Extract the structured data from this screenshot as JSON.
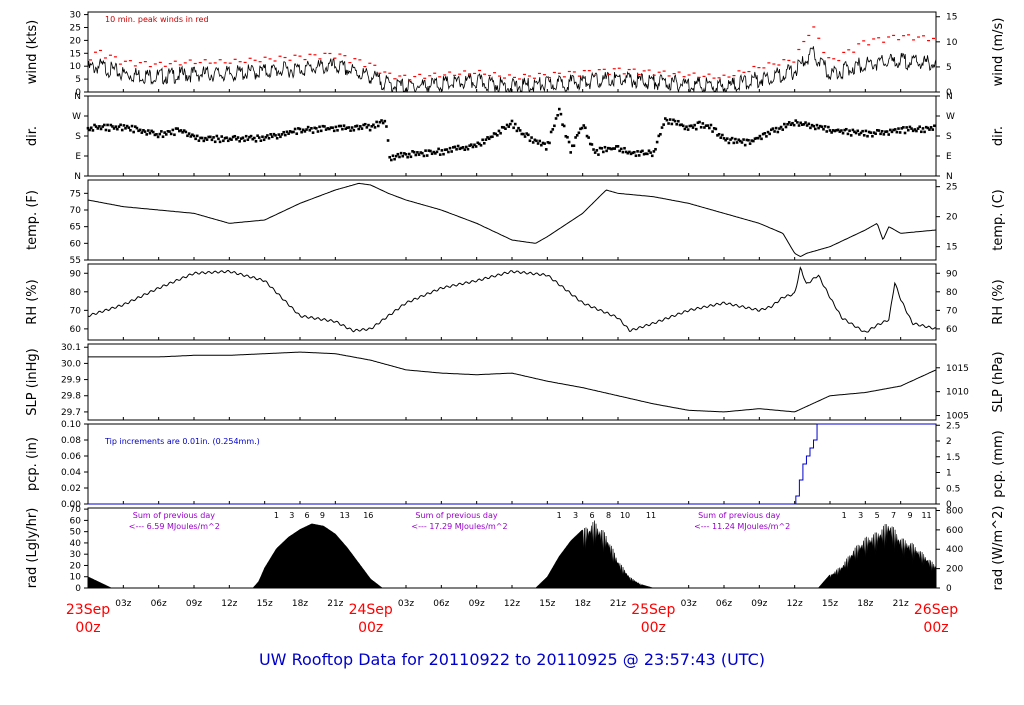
{
  "title": "UW Rooftop Data for 20110922  to  20110925 @ 23:57:43  (UTC)",
  "colors": {
    "trace": "#000000",
    "peak": "#ff0000",
    "note_wind": "#cc0000",
    "note_pcp": "#0000cc",
    "pcp_line": "#0000cc",
    "rad_note": "#9900cc",
    "date_label": "#ff0000",
    "title": "#0000cc"
  },
  "time_axis": {
    "day_labels": [
      {
        "t": 0,
        "day": "23Sep",
        "hour": "00z"
      },
      {
        "t": 24,
        "day": "24Sep",
        "hour": "00z"
      },
      {
        "t": 48,
        "day": "25Sep",
        "hour": "00z"
      },
      {
        "t": 72,
        "day": "26Sep",
        "hour": "00z"
      }
    ],
    "hour_labels": [
      {
        "t": 3,
        "label": "03z"
      },
      {
        "t": 6,
        "label": "06z"
      },
      {
        "t": 9,
        "label": "09z"
      },
      {
        "t": 12,
        "label": "12z"
      },
      {
        "t": 15,
        "label": "15z"
      },
      {
        "t": 18,
        "label": "18z"
      },
      {
        "t": 21,
        "label": "21z"
      },
      {
        "t": 27,
        "label": "03z"
      },
      {
        "t": 30,
        "label": "06z"
      },
      {
        "t": 33,
        "label": "09z"
      },
      {
        "t": 36,
        "label": "12z"
      },
      {
        "t": 39,
        "label": "15z"
      },
      {
        "t": 42,
        "label": "18z"
      },
      {
        "t": 45,
        "label": "21z"
      },
      {
        "t": 51,
        "label": "03z"
      },
      {
        "t": 54,
        "label": "06z"
      },
      {
        "t": 57,
        "label": "09z"
      },
      {
        "t": 60,
        "label": "12z"
      },
      {
        "t": 63,
        "label": "15z"
      },
      {
        "t": 66,
        "label": "18z"
      },
      {
        "t": 69,
        "label": "21z"
      }
    ]
  },
  "chart_data": [
    {
      "type": "line",
      "id": "wind",
      "ylabel_left": "wind (kts)",
      "ylabel_right": "wind (m/s)",
      "ylim": [
        0,
        31
      ],
      "left_ticks": [
        0,
        5,
        10,
        15,
        20,
        25,
        30
      ],
      "right_ticks": [
        0,
        5,
        10,
        15
      ],
      "right_factor": 1.944,
      "annotation": "10 min. peak winds in red",
      "series": [
        {
          "role": "mean",
          "x": [
            0,
            1,
            3,
            6,
            9,
            12,
            15,
            18,
            21,
            24,
            25.5,
            27,
            30,
            33,
            36,
            39,
            42,
            45,
            48,
            51,
            54,
            57,
            60,
            61.5,
            63,
            66,
            69,
            72
          ],
          "y": [
            9,
            10,
            7,
            6,
            7,
            7,
            8,
            9,
            10,
            6,
            3,
            2,
            3,
            4,
            2,
            3,
            4,
            5,
            4,
            3,
            2,
            5,
            8,
            15,
            7,
            11,
            12,
            11
          ]
        },
        {
          "role": "peak",
          "x": [
            0,
            1,
            3,
            6,
            9,
            12,
            15,
            18,
            21,
            24,
            25.5,
            27,
            30,
            33,
            36,
            39,
            42,
            45,
            48,
            51,
            54,
            57,
            60,
            61.5,
            63,
            66,
            69,
            72
          ],
          "y": [
            12,
            14,
            10,
            9,
            10,
            10,
            11,
            12,
            13,
            9,
            5,
            4,
            5,
            6,
            4,
            5,
            6,
            7,
            6,
            5,
            4,
            8,
            11,
            24,
            10,
            18,
            20,
            19
          ]
        }
      ]
    },
    {
      "type": "scatter",
      "id": "dir",
      "ylabel_left": "dir.",
      "ylabel_right": "dir.",
      "ylim": [
        0,
        360
      ],
      "left_ticks": [
        {
          "v": 0,
          "label": "N"
        },
        {
          "v": 90,
          "label": "E"
        },
        {
          "v": 180,
          "label": "S"
        },
        {
          "v": 270,
          "label": "W"
        },
        {
          "v": 360,
          "label": "N"
        }
      ],
      "series": [
        {
          "x": [
            0,
            3,
            6,
            8,
            9,
            12,
            15,
            18,
            21,
            24,
            25.3,
            25.6,
            27,
            30,
            33,
            36,
            37,
            39,
            40,
            41,
            42,
            43,
            44,
            45,
            46,
            48,
            49,
            50,
            51,
            52,
            53,
            54,
            56,
            57,
            60,
            61,
            63,
            66,
            69,
            72
          ],
          "y": [
            215,
            220,
            185,
            205,
            170,
            165,
            170,
            205,
            215,
            220,
            245,
            80,
            95,
            110,
            135,
            235,
            185,
            130,
            300,
            110,
            235,
            105,
            120,
            125,
            100,
            100,
            250,
            235,
            215,
            230,
            215,
            165,
            150,
            175,
            240,
            230,
            205,
            190,
            205,
            215
          ]
        }
      ]
    },
    {
      "type": "line",
      "id": "temp",
      "ylabel_left": "temp. (F)",
      "ylabel_right": "temp. (C)",
      "ylim": [
        55,
        79
      ],
      "left_ticks": [
        55,
        60,
        65,
        70,
        75
      ],
      "right_ticks": [
        15,
        20,
        25
      ],
      "series": [
        {
          "x": [
            0,
            3,
            6,
            9,
            12,
            15,
            18,
            21,
            23,
            24,
            25.5,
            27,
            30,
            33,
            36,
            38,
            39,
            42,
            44,
            45,
            48,
            51,
            54,
            57,
            59,
            60,
            60.5,
            61,
            63,
            66,
            67,
            67.5,
            68,
            69,
            72
          ],
          "y": [
            73,
            71,
            70,
            69,
            66,
            67,
            72,
            76,
            78,
            77.5,
            75,
            73,
            70,
            66,
            61,
            60,
            62,
            69,
            76,
            75,
            74,
            72,
            69,
            66,
            63,
            57,
            56,
            57,
            59,
            64,
            66,
            61,
            65,
            63,
            64
          ]
        }
      ]
    },
    {
      "type": "line",
      "id": "rh",
      "ylabel_left": "RH (%)",
      "ylabel_right": "RH (%)",
      "ylim": [
        54,
        95
      ],
      "left_ticks": [
        60,
        70,
        80,
        90
      ],
      "right_ticks": [
        60,
        70,
        80,
        90
      ],
      "series": [
        {
          "x": [
            0,
            3,
            6,
            9,
            12,
            15,
            18,
            21,
            22.5,
            24,
            27,
            30,
            33,
            36,
            39,
            42,
            45,
            46,
            48,
            51,
            54,
            57,
            58,
            59,
            60,
            60.5,
            61,
            62,
            63,
            64,
            66,
            67,
            68,
            68.5,
            69,
            70,
            72
          ],
          "y": [
            67,
            73,
            82,
            90,
            91,
            86,
            67,
            64,
            59,
            60,
            74,
            82,
            86,
            91,
            89,
            74,
            66,
            59,
            63,
            70,
            74,
            70,
            72,
            77,
            79,
            93,
            84,
            89,
            77,
            66,
            58,
            62,
            65,
            85,
            76,
            63,
            60
          ]
        }
      ]
    },
    {
      "type": "line",
      "id": "slp",
      "ylabel_left": "SLP (inHg)",
      "ylabel_right": "SLP (hPa)",
      "ylim": [
        29.65,
        30.12
      ],
      "left_ticks": [
        29.7,
        29.8,
        29.9,
        30.0,
        30.1
      ],
      "left_decimals": 1,
      "right_ticks": [
        1005,
        1010,
        1015
      ],
      "right_scale": {
        "a": 33.8639,
        "b": 0
      },
      "series": [
        {
          "x": [
            0,
            3,
            6,
            9,
            12,
            15,
            18,
            21,
            24,
            27,
            30,
            33,
            36,
            39,
            42,
            45,
            48,
            51,
            54,
            57,
            60,
            63,
            66,
            69,
            72
          ],
          "y": [
            30.04,
            30.04,
            30.04,
            30.05,
            30.05,
            30.06,
            30.07,
            30.06,
            30.02,
            29.96,
            29.94,
            29.93,
            29.94,
            29.89,
            29.85,
            29.8,
            29.75,
            29.71,
            29.7,
            29.72,
            29.7,
            29.8,
            29.82,
            29.86,
            29.96
          ]
        }
      ]
    },
    {
      "type": "line",
      "id": "pcp",
      "ylabel_left": "pcp. (in)",
      "ylabel_right": "pcp. (mm)",
      "ylim": [
        0,
        0.1
      ],
      "left_ticks": [
        0.0,
        0.02,
        0.04,
        0.06,
        0.08,
        0.1
      ],
      "left_decimals": 2,
      "right_ticks": [
        0,
        0.5,
        1,
        1.5,
        2,
        2.5
      ],
      "right_scale": {
        "a": 25.4,
        "b": 0
      },
      "annotation": "Tip increments are 0.01in. (0.254mm.)",
      "series": [
        {
          "x": [
            0,
            59.8,
            60.1,
            60.4,
            60.7,
            61.0,
            61.3,
            61.6,
            61.9,
            72
          ],
          "y": [
            0,
            0,
            0.01,
            0.03,
            0.05,
            0.06,
            0.07,
            0.08,
            0.1,
            0.1
          ]
        }
      ]
    },
    {
      "type": "area",
      "id": "rad",
      "ylabel_left": "rad (Lgly/hr)",
      "ylabel_right": "rad (W/m^2)",
      "ylim": [
        0,
        71
      ],
      "left_ticks": [
        0,
        10,
        20,
        30,
        40,
        50,
        60,
        70
      ],
      "right_ticks": [
        0,
        200,
        400,
        600,
        800
      ],
      "right_scale": {
        "a": 11.63,
        "b": 0
      },
      "series": [
        {
          "x": [
            0,
            1,
            2,
            14,
            14.5,
            15,
            16,
            17,
            18,
            19,
            20,
            21,
            22,
            23,
            24,
            25,
            38,
            39,
            40,
            41,
            42,
            43,
            44,
            45,
            46,
            47,
            48,
            62,
            63,
            64,
            65,
            66,
            67,
            68,
            69,
            70,
            71,
            72
          ],
          "y": [
            10,
            5,
            0,
            0,
            6,
            18,
            35,
            45,
            52,
            57,
            55,
            48,
            36,
            22,
            8,
            0,
            0,
            10,
            28,
            42,
            52,
            60,
            48,
            25,
            10,
            3,
            0,
            0,
            12,
            20,
            35,
            45,
            50,
            60,
            45,
            40,
            30,
            20
          ]
        }
      ],
      "annotations": [
        {
          "t": 3.8,
          "lines": [
            "Sum of previous day",
            "<--- 6.59 MJoules/m^2"
          ]
        },
        {
          "t": 27.8,
          "lines": [
            "Sum of previous day",
            "<--- 17.29 MJoules/m^2"
          ]
        },
        {
          "t": 51.8,
          "lines": [
            "Sum of previous day",
            "<--- 11.24 MJoules/m^2"
          ]
        }
      ],
      "hour_marks": [
        {
          "t": 16.0,
          "label": "1"
        },
        {
          "t": 17.3,
          "label": "3"
        },
        {
          "t": 18.6,
          "label": "6"
        },
        {
          "t": 19.9,
          "label": "9"
        },
        {
          "t": 21.8,
          "label": "13"
        },
        {
          "t": 23.8,
          "label": "16"
        },
        {
          "t": 40.0,
          "label": "1"
        },
        {
          "t": 41.4,
          "label": "3"
        },
        {
          "t": 42.8,
          "label": "6"
        },
        {
          "t": 44.2,
          "label": "8"
        },
        {
          "t": 45.6,
          "label": "10"
        },
        {
          "t": 47.8,
          "label": "11"
        },
        {
          "t": 64.2,
          "label": "1"
        },
        {
          "t": 65.6,
          "label": "3"
        },
        {
          "t": 67.0,
          "label": "5"
        },
        {
          "t": 68.4,
          "label": "7"
        },
        {
          "t": 69.8,
          "label": "9"
        },
        {
          "t": 71.2,
          "label": "11"
        }
      ]
    }
  ]
}
